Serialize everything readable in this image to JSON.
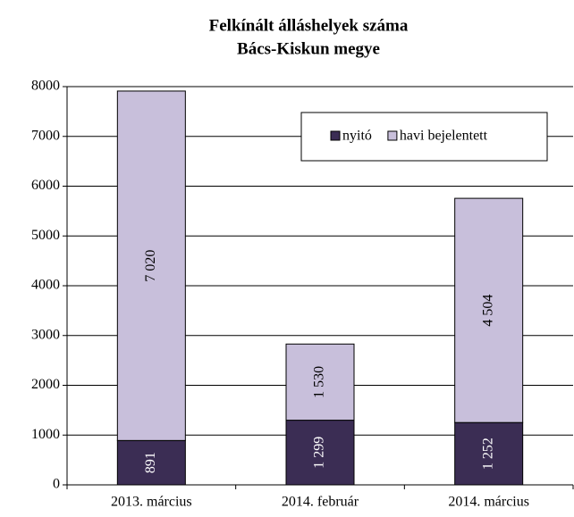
{
  "chart_data": {
    "type": "stacked_bar",
    "title": "Felkínált álláshelyek száma",
    "subtitle": "Bács-Kiskun megye",
    "categories": [
      "2013. március",
      "2014. február",
      "2014. március"
    ],
    "series": [
      {
        "name": "nyitó",
        "color": "#3b2d54",
        "values": [
          891,
          1299,
          1252
        ],
        "value_labels": [
          "891",
          "1 299",
          "1 252"
        ]
      },
      {
        "name": "havi bejelentett",
        "color": "#c8bfdb",
        "values": [
          7020,
          1530,
          4504
        ],
        "value_labels": [
          "7 020",
          "1 530",
          "4 504"
        ]
      }
    ],
    "ylim": [
      0,
      8000
    ],
    "yticks": [
      0,
      1000,
      2000,
      3000,
      4000,
      5000,
      6000,
      7000,
      8000
    ],
    "grid": true,
    "legend": "top-right"
  }
}
